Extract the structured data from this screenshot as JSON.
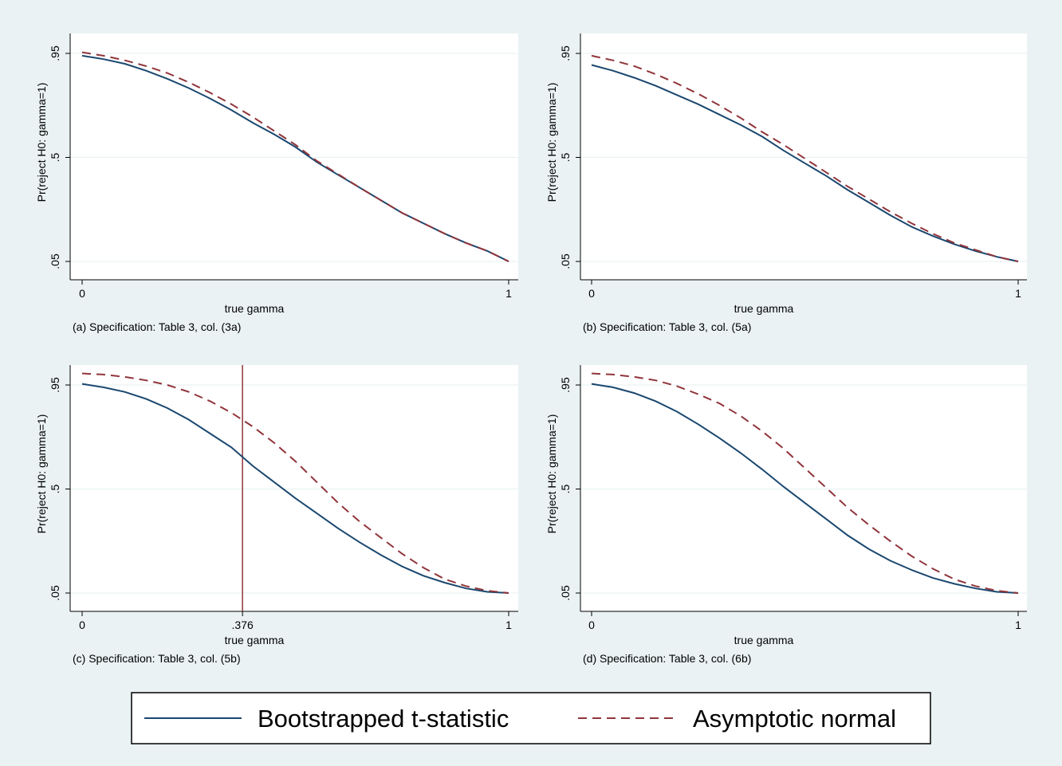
{
  "colors": {
    "background": "#eaf2f3",
    "bootstrapped": "#1a476f",
    "asymptotic": "#90353b"
  },
  "legend": {
    "placement": "bottom",
    "entries": [
      {
        "label": "Bootstrapped t-statistic",
        "style": "solid",
        "color": "#1a476f"
      },
      {
        "label": "Asymptotic normal",
        "style": "dashed",
        "color": "#90353b"
      }
    ]
  },
  "chart_data": [
    {
      "type": "line",
      "caption": "(a) Specification: Table 3, col. (3a)",
      "xlabel": "true gamma",
      "ylabel": "Pr(reject H0: gamma=1)",
      "xlim": [
        0,
        1
      ],
      "ylim": [
        0.05,
        0.95
      ],
      "xticks": [
        "0",
        "1"
      ],
      "yticks": [
        ".05",
        ".5",
        ".95"
      ],
      "grid": true,
      "x": [
        0,
        0.05,
        0.1,
        0.15,
        0.2,
        0.25,
        0.3,
        0.35,
        0.4,
        0.45,
        0.5,
        0.55,
        0.6,
        0.65,
        0.7,
        0.75,
        0.8,
        0.85,
        0.9,
        0.95,
        1.0
      ],
      "series": [
        {
          "name": "Bootstrapped t-statistic",
          "values": [
            0.94,
            0.925,
            0.905,
            0.875,
            0.84,
            0.8,
            0.755,
            0.705,
            0.65,
            0.6,
            0.545,
            0.48,
            0.425,
            0.37,
            0.315,
            0.26,
            0.215,
            0.17,
            0.13,
            0.095,
            0.05
          ]
        },
        {
          "name": "Asymptotic normal",
          "values": [
            0.955,
            0.94,
            0.92,
            0.895,
            0.865,
            0.825,
            0.78,
            0.73,
            0.675,
            0.615,
            0.555,
            0.485,
            0.428,
            0.37,
            0.315,
            0.26,
            0.215,
            0.17,
            0.13,
            0.095,
            0.05
          ]
        }
      ]
    },
    {
      "type": "line",
      "caption": "(b) Specification: Table 3, col. (5a)",
      "xlabel": "true gamma",
      "ylabel": "Pr(reject H0: gamma=1)",
      "xlim": [
        0,
        1
      ],
      "ylim": [
        0.05,
        0.95
      ],
      "xticks": [
        "0",
        "1"
      ],
      "yticks": [
        ".05",
        ".5",
        ".95"
      ],
      "grid": true,
      "x": [
        0,
        0.05,
        0.1,
        0.15,
        0.2,
        0.25,
        0.3,
        0.35,
        0.4,
        0.45,
        0.5,
        0.55,
        0.6,
        0.65,
        0.7,
        0.75,
        0.8,
        0.85,
        0.9,
        0.95,
        1.0
      ],
      "series": [
        {
          "name": "Bootstrapped t-statistic",
          "values": [
            0.9,
            0.875,
            0.845,
            0.81,
            0.77,
            0.73,
            0.685,
            0.64,
            0.59,
            0.53,
            0.475,
            0.42,
            0.36,
            0.305,
            0.25,
            0.2,
            0.16,
            0.125,
            0.095,
            0.07,
            0.05
          ]
        },
        {
          "name": "Asymptotic normal",
          "values": [
            0.94,
            0.92,
            0.895,
            0.86,
            0.82,
            0.775,
            0.725,
            0.67,
            0.61,
            0.555,
            0.495,
            0.435,
            0.375,
            0.32,
            0.265,
            0.215,
            0.17,
            0.13,
            0.1,
            0.07,
            0.05
          ]
        }
      ]
    },
    {
      "type": "line",
      "caption": "(c) Specification: Table 3, col. (5b)",
      "xlabel": "true gamma",
      "ylabel": "Pr(reject H0: gamma=1)",
      "xlim": [
        0,
        1
      ],
      "ylim": [
        0.05,
        0.95
      ],
      "xticks": [
        "0",
        ".376",
        "1"
      ],
      "yticks": [
        ".05",
        ".5",
        ".95"
      ],
      "grid": true,
      "reference_x": 0.376,
      "x": [
        0,
        0.05,
        0.1,
        0.15,
        0.2,
        0.25,
        0.3,
        0.35,
        0.4,
        0.45,
        0.5,
        0.55,
        0.6,
        0.65,
        0.7,
        0.75,
        0.8,
        0.85,
        0.9,
        0.95,
        1.0
      ],
      "series": [
        {
          "name": "Bootstrapped t-statistic",
          "values": [
            0.955,
            0.94,
            0.92,
            0.89,
            0.85,
            0.8,
            0.74,
            0.68,
            0.6,
            0.53,
            0.46,
            0.395,
            0.33,
            0.27,
            0.215,
            0.165,
            0.125,
            0.095,
            0.07,
            0.055,
            0.05
          ]
        },
        {
          "name": "Asymptotic normal",
          "values": [
            1.0,
            0.995,
            0.985,
            0.97,
            0.95,
            0.92,
            0.88,
            0.83,
            0.77,
            0.7,
            0.62,
            0.53,
            0.44,
            0.36,
            0.29,
            0.22,
            0.16,
            0.11,
            0.08,
            0.06,
            0.05
          ]
        }
      ]
    },
    {
      "type": "line",
      "caption": "(d) Specification: Table 3, col. (6b)",
      "xlabel": "true gamma",
      "ylabel": "Pr(reject H0: gamma=1)",
      "xlim": [
        0,
        1
      ],
      "ylim": [
        0.05,
        0.95
      ],
      "xticks": [
        "0",
        "1"
      ],
      "yticks": [
        ".05",
        ".5",
        ".95"
      ],
      "grid": true,
      "x": [
        0,
        0.05,
        0.1,
        0.15,
        0.2,
        0.25,
        0.3,
        0.35,
        0.4,
        0.45,
        0.5,
        0.55,
        0.6,
        0.65,
        0.7,
        0.75,
        0.8,
        0.85,
        0.9,
        0.95,
        1.0
      ],
      "series": [
        {
          "name": "Bootstrapped t-statistic",
          "values": [
            0.955,
            0.94,
            0.915,
            0.88,
            0.835,
            0.78,
            0.72,
            0.655,
            0.585,
            0.51,
            0.44,
            0.37,
            0.3,
            0.24,
            0.19,
            0.15,
            0.115,
            0.09,
            0.07,
            0.055,
            0.05
          ]
        },
        {
          "name": "Asymptotic normal",
          "values": [
            1.0,
            0.995,
            0.985,
            0.97,
            0.945,
            0.91,
            0.87,
            0.815,
            0.75,
            0.675,
            0.59,
            0.505,
            0.42,
            0.345,
            0.275,
            0.21,
            0.155,
            0.11,
            0.08,
            0.06,
            0.05
          ]
        }
      ]
    }
  ]
}
